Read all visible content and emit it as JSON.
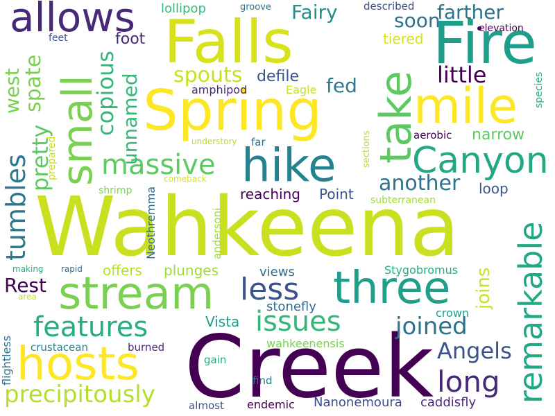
{
  "colors": {
    "background": "#ffffff",
    "palette": [
      "#440154",
      "#482979",
      "#3b528b",
      "#2c728e",
      "#21908d",
      "#27ad81",
      "#5cc863",
      "#aadc32",
      "#fde725"
    ]
  },
  "words": [
    {
      "text": "Wahkeena",
      "color": "#c8e020"
    },
    {
      "text": "Creek",
      "color": "#440154"
    },
    {
      "text": "Falls",
      "color": "#d8e219"
    },
    {
      "text": "Spring",
      "color": "#fde725"
    },
    {
      "text": "Fire",
      "color": "#1f9e89"
    },
    {
      "text": "small",
      "color": "#7ad151"
    },
    {
      "text": "take",
      "color": "#5ec962"
    },
    {
      "text": "mile",
      "color": "#fde725"
    },
    {
      "text": "hike",
      "color": "#26828e"
    },
    {
      "text": "allows",
      "color": "#482979"
    },
    {
      "text": "hosts",
      "color": "#fde725"
    },
    {
      "text": "stream",
      "color": "#7ad151"
    },
    {
      "text": "three",
      "color": "#1f9e89"
    },
    {
      "text": "Canyon",
      "color": "#22a884"
    },
    {
      "text": "remarkable",
      "color": "#22a884"
    },
    {
      "text": "massive",
      "color": "#5ec962"
    },
    {
      "text": "features",
      "color": "#27ad81"
    },
    {
      "text": "less",
      "color": "#3b528b"
    },
    {
      "text": "issues",
      "color": "#35b779"
    },
    {
      "text": "precipitously",
      "color": "#b5de2b"
    },
    {
      "text": "tumbles",
      "color": "#2a788e"
    },
    {
      "text": "pretty",
      "color": "#5ec962"
    },
    {
      "text": "copious",
      "color": "#35b779"
    },
    {
      "text": "long",
      "color": "#482979"
    },
    {
      "text": "joined",
      "color": "#2c728e"
    },
    {
      "text": "Angels",
      "color": "#3b528b"
    },
    {
      "text": "another",
      "color": "#2c728e"
    },
    {
      "text": "spouts",
      "color": "#c8e020"
    },
    {
      "text": "Fairy",
      "color": "#21908d"
    },
    {
      "text": "farther",
      "color": "#2c728e"
    },
    {
      "text": "soon",
      "color": "#2c728e"
    },
    {
      "text": "little",
      "color": "#440154"
    },
    {
      "text": "unnamed",
      "color": "#35b779"
    },
    {
      "text": "spate",
      "color": "#7ad151"
    },
    {
      "text": "west",
      "color": "#7ad151"
    },
    {
      "text": "Rest",
      "color": "#440154"
    },
    {
      "text": "joins",
      "color": "#c8e020"
    },
    {
      "text": "fed",
      "color": "#2a788e"
    },
    {
      "text": "defile",
      "color": "#3b528b"
    },
    {
      "text": "foot",
      "color": "#482979"
    },
    {
      "text": "narrow",
      "color": "#5ec962"
    },
    {
      "text": "offers",
      "color": "#b5de2b"
    },
    {
      "text": "plunges",
      "color": "#a0da39"
    },
    {
      "text": "Vista",
      "color": "#1f9e89"
    },
    {
      "text": "Point",
      "color": "#3b528b"
    },
    {
      "text": "reaching",
      "color": "#440154"
    },
    {
      "text": "loop",
      "color": "#3b528b"
    },
    {
      "text": "tiered",
      "color": "#d8e219"
    },
    {
      "text": "lollipop",
      "color": "#35b779"
    },
    {
      "text": "amphipod",
      "color": "#482979"
    },
    {
      "text": "Eagle",
      "color": "#c8e020"
    },
    {
      "text": "views",
      "color": "#31688e"
    },
    {
      "text": "stonefly",
      "color": "#31688e"
    },
    {
      "text": "Stygobromus",
      "color": "#27ad81"
    },
    {
      "text": "crown",
      "color": "#1f9e89"
    },
    {
      "text": "wahkeenensis",
      "color": "#7ad151"
    },
    {
      "text": "caddisfly",
      "color": "#482979"
    },
    {
      "text": "Nanonemoura",
      "color": "#3e4a89"
    },
    {
      "text": "endemic",
      "color": "#440154"
    },
    {
      "text": "almost",
      "color": "#3b528b"
    },
    {
      "text": "find",
      "color": "#2a788e"
    },
    {
      "text": "burned",
      "color": "#482979"
    },
    {
      "text": "gain",
      "color": "#27ad81"
    },
    {
      "text": "crustacean",
      "color": "#26828e"
    },
    {
      "text": "flightless",
      "color": "#2c728e"
    },
    {
      "text": "Neothremma",
      "color": "#31688e"
    },
    {
      "text": "andersoni",
      "color": "#a0da39"
    },
    {
      "text": "subterranean",
      "color": "#a0da39"
    },
    {
      "text": "comeback",
      "color": "#d8e219"
    },
    {
      "text": "shrimp",
      "color": "#7ad151"
    },
    {
      "text": "prepared",
      "color": "#c8e020"
    },
    {
      "text": "understory",
      "color": "#b5de2b"
    },
    {
      "text": "far",
      "color": "#2c728e"
    },
    {
      "text": "aerobic",
      "color": "#440154"
    },
    {
      "text": "sections",
      "color": "#b5de2b"
    },
    {
      "text": "species",
      "color": "#27ad81"
    },
    {
      "text": "elevation",
      "color": "#440154"
    },
    {
      "text": "described",
      "color": "#3b528b"
    },
    {
      "text": "groove",
      "color": "#2c728e"
    },
    {
      "text": "feet",
      "color": "#3b528b"
    },
    {
      "text": "making",
      "color": "#27ad81"
    },
    {
      "text": "rapid",
      "color": "#31688e"
    },
    {
      "text": "area",
      "color": "#c8e020"
    }
  ]
}
